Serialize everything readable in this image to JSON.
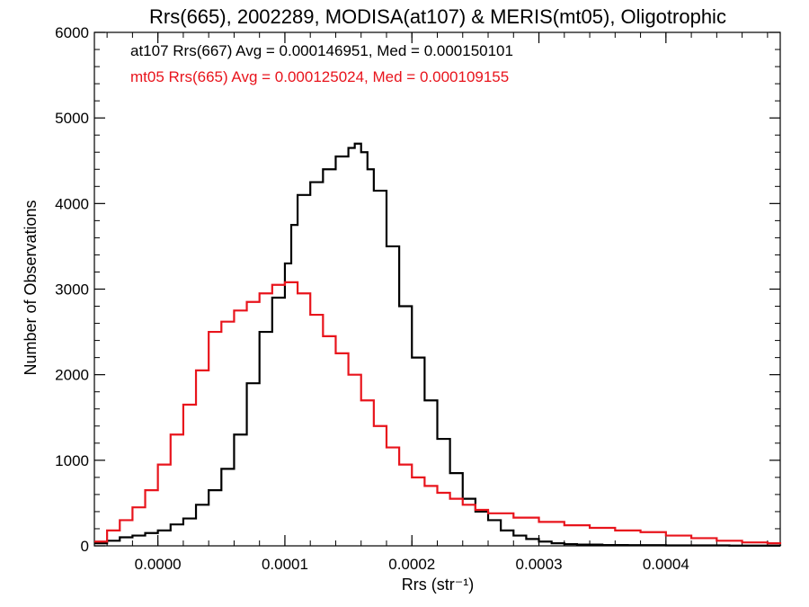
{
  "chart_data": {
    "type": "line",
    "title": "Rrs(665), 2002289, MODISA(at107) & MERIS(mt05), Oligotrophic",
    "xlabel": "Rrs (str⁻¹)",
    "ylabel": "Number of Observations",
    "xlim": [
      -5e-05,
      0.00049
    ],
    "ylim": [
      0,
      6000
    ],
    "x_ticks": [
      0.0,
      0.0001,
      0.0002,
      0.0003,
      0.0004
    ],
    "x_tick_labels": [
      "0.0000",
      "0.0001",
      "0.0002",
      "0.0003",
      "0.0004"
    ],
    "y_ticks": [
      0,
      1000,
      2000,
      3000,
      4000,
      5000,
      6000
    ],
    "y_tick_labels": [
      "0",
      "1000",
      "2000",
      "3000",
      "4000",
      "5000",
      "6000"
    ],
    "grid": false,
    "annotations": [
      {
        "text": "at107 Rrs(667) Avg = 0.000146951, Med = 0.000150101",
        "color": "#000000"
      },
      {
        "text": "mt05 Rrs(665) Avg = 0.000125024, Med = 0.000109155",
        "color": "#e8141c"
      }
    ],
    "series": [
      {
        "color": "#000000",
        "style": "step",
        "x": [
          -5e-05,
          -4e-05,
          -3e-05,
          -2e-05,
          -1e-05,
          0.0,
          1e-05,
          2e-05,
          3e-05,
          4e-05,
          5e-05,
          6e-05,
          7e-05,
          8e-05,
          9e-05,
          0.0001,
          0.000105,
          0.00011,
          0.00012,
          0.00013,
          0.00014,
          0.00015,
          0.000155,
          0.00016,
          0.000165,
          0.00017,
          0.00018,
          0.00019,
          0.0002,
          0.00021,
          0.00022,
          0.00023,
          0.00024,
          0.00025,
          0.00026,
          0.00027,
          0.00028,
          0.00029,
          0.0003,
          0.00031,
          0.00032,
          0.00033,
          0.00035,
          0.00037,
          0.0004,
          0.00045,
          0.00049
        ],
        "values": [
          30,
          60,
          100,
          120,
          150,
          180,
          250,
          320,
          480,
          650,
          900,
          1300,
          1900,
          2500,
          2900,
          3300,
          3750,
          4100,
          4250,
          4400,
          4550,
          4650,
          4700,
          4600,
          4400,
          4150,
          3500,
          2800,
          2200,
          1700,
          1250,
          850,
          550,
          400,
          300,
          180,
          120,
          80,
          50,
          30,
          20,
          15,
          10,
          8,
          5,
          3,
          2
        ]
      },
      {
        "color": "#e8141c",
        "style": "step",
        "x": [
          -5e-05,
          -4e-05,
          -3e-05,
          -2e-05,
          -1e-05,
          0.0,
          1e-05,
          2e-05,
          3e-05,
          4e-05,
          5e-05,
          6e-05,
          7e-05,
          8e-05,
          9e-05,
          0.0001,
          0.00011,
          0.00012,
          0.00013,
          0.00014,
          0.00015,
          0.00016,
          0.00017,
          0.00018,
          0.00019,
          0.0002,
          0.00021,
          0.00022,
          0.00023,
          0.00024,
          0.00025,
          0.00026,
          0.00028,
          0.0003,
          0.00032,
          0.00034,
          0.00036,
          0.00038,
          0.0004,
          0.00042,
          0.00044,
          0.00046,
          0.00048,
          0.00049
        ],
        "values": [
          50,
          180,
          300,
          450,
          650,
          950,
          1300,
          1650,
          2050,
          2500,
          2620,
          2750,
          2850,
          2950,
          3050,
          3080,
          2950,
          2700,
          2450,
          2250,
          2000,
          1700,
          1400,
          1150,
          950,
          800,
          700,
          620,
          550,
          480,
          420,
          380,
          330,
          280,
          240,
          210,
          180,
          160,
          120,
          90,
          60,
          40,
          30,
          20
        ]
      }
    ]
  }
}
